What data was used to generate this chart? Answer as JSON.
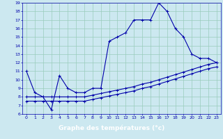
{
  "xlabel": "Graphe des températures (°c)",
  "bg_color": "#cce8f0",
  "line_color": "#0000aa",
  "grid_color": "#99ccbb",
  "axis_label_bg": "#0000cc",
  "xlim": [
    -0.5,
    23.5
  ],
  "ylim": [
    6,
    19
  ],
  "xticks": [
    0,
    1,
    2,
    3,
    4,
    5,
    6,
    7,
    8,
    9,
    10,
    11,
    12,
    13,
    14,
    15,
    16,
    17,
    18,
    19,
    20,
    21,
    22,
    23
  ],
  "yticks": [
    6,
    7,
    8,
    9,
    10,
    11,
    12,
    13,
    14,
    15,
    16,
    17,
    18,
    19
  ],
  "curve1_x": [
    0,
    1,
    2,
    3,
    4,
    5,
    6,
    7,
    8,
    9,
    10,
    11,
    12,
    13,
    14,
    15,
    16,
    17,
    18,
    19,
    20,
    21,
    22,
    23
  ],
  "curve1_y": [
    11,
    8.5,
    8.0,
    6.5,
    10.5,
    9.0,
    8.5,
    8.5,
    9.0,
    9.0,
    14.5,
    15.0,
    15.5,
    17.0,
    17.0,
    17.0,
    19.0,
    18.0,
    16.0,
    15.0,
    13.0,
    12.5,
    12.5,
    12.0
  ],
  "curve2_x": [
    0,
    1,
    2,
    3,
    4,
    5,
    6,
    7,
    8,
    9,
    10,
    11,
    12,
    13,
    14,
    15,
    16,
    17,
    18,
    19,
    20,
    21,
    22,
    23
  ],
  "curve2_y": [
    8.0,
    8.0,
    8.0,
    8.0,
    8.0,
    8.0,
    8.0,
    8.0,
    8.2,
    8.4,
    8.6,
    8.8,
    9.0,
    9.2,
    9.5,
    9.7,
    10.0,
    10.3,
    10.6,
    10.9,
    11.2,
    11.5,
    11.8,
    12.0
  ],
  "curve3_x": [
    0,
    1,
    2,
    3,
    4,
    5,
    6,
    7,
    8,
    9,
    10,
    11,
    12,
    13,
    14,
    15,
    16,
    17,
    18,
    19,
    20,
    21,
    22,
    23
  ],
  "curve3_y": [
    7.5,
    7.5,
    7.5,
    7.5,
    7.5,
    7.5,
    7.5,
    7.5,
    7.7,
    7.9,
    8.1,
    8.3,
    8.5,
    8.7,
    9.0,
    9.2,
    9.5,
    9.8,
    10.1,
    10.4,
    10.7,
    11.0,
    11.3,
    11.5
  ]
}
